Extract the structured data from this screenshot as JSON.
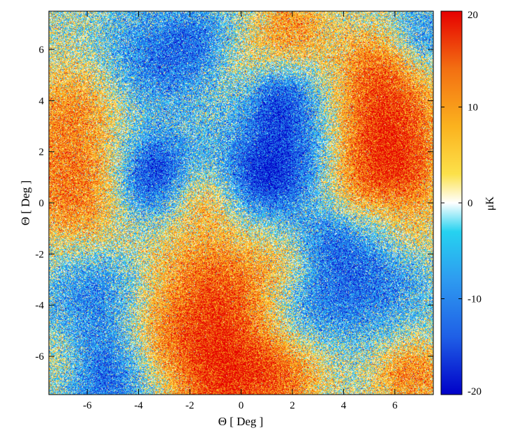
{
  "chart_data": {
    "type": "heatmap",
    "title": "",
    "xlabel": "Θ [ Deg ]",
    "ylabel": "Θ [ Deg ]",
    "xlim": [
      -7.5,
      7.5
    ],
    "ylim": [
      -7.5,
      7.5
    ],
    "x_ticks": [
      -6,
      -4,
      -2,
      0,
      2,
      4,
      6
    ],
    "y_ticks": [
      -6,
      -4,
      -2,
      0,
      2,
      4,
      6
    ],
    "x_tick_labels": [
      "-6",
      "-4",
      "-2",
      "0",
      "2",
      "4",
      "6"
    ],
    "y_tick_labels": [
      "-6",
      "-4",
      "-2",
      "0",
      "2",
      "4",
      "6"
    ],
    "grid": false,
    "colorbar": {
      "label": "μK",
      "range": [
        -20,
        20
      ],
      "ticks": [
        20,
        10,
        0,
        -10,
        -20
      ],
      "tick_labels": [
        "20",
        "10",
        "0",
        "-10",
        "-20"
      ],
      "placement": "right",
      "colormap_stops": [
        {
          "value": -20,
          "color": "#0000c8"
        },
        {
          "value": -14,
          "color": "#1f5fe6"
        },
        {
          "value": -8,
          "color": "#2e9bf0"
        },
        {
          "value": -3,
          "color": "#26d2f0"
        },
        {
          "value": 0,
          "color": "#ffffff"
        },
        {
          "value": 3,
          "color": "#fce14a"
        },
        {
          "value": 8,
          "color": "#fbb21e"
        },
        {
          "value": 14,
          "color": "#f36f12"
        },
        {
          "value": 20,
          "color": "#e60000"
        }
      ]
    },
    "noise_sigma": 6,
    "blobs": [
      {
        "x": -7.0,
        "y": 2.0,
        "r": 1.8,
        "amp": 9
      },
      {
        "x": -6.3,
        "y": 4.2,
        "r": 1.2,
        "amp": 6
      },
      {
        "x": -6.2,
        "y": -0.4,
        "r": 1.4,
        "amp": 8
      },
      {
        "x": -3.3,
        "y": 1.6,
        "r": 1.0,
        "amp": -11
      },
      {
        "x": -3.8,
        "y": 0.4,
        "r": 1.0,
        "amp": -9
      },
      {
        "x": -3.5,
        "y": 5.5,
        "r": 1.6,
        "amp": -10
      },
      {
        "x": -1.5,
        "y": 6.3,
        "r": 1.1,
        "amp": -8
      },
      {
        "x": 0.0,
        "y": 5.5,
        "r": 1.1,
        "amp": 5
      },
      {
        "x": 2.0,
        "y": 6.8,
        "r": 1.0,
        "amp": 10
      },
      {
        "x": 1.8,
        "y": 2.0,
        "r": 1.8,
        "amp": -14
      },
      {
        "x": 1.5,
        "y": 4.1,
        "r": 0.9,
        "amp": -9
      },
      {
        "x": 0.8,
        "y": 0.8,
        "r": 1.0,
        "amp": -8
      },
      {
        "x": -1.4,
        "y": 0.1,
        "r": 0.8,
        "amp": 6
      },
      {
        "x": -5.7,
        "y": -3.3,
        "r": 1.4,
        "amp": -10
      },
      {
        "x": -5.4,
        "y": -6.8,
        "r": 1.4,
        "amp": -13
      },
      {
        "x": -7.0,
        "y": -6.4,
        "r": 0.9,
        "amp": 6
      },
      {
        "x": -1.0,
        "y": -3.6,
        "r": 1.9,
        "amp": 15
      },
      {
        "x": -0.7,
        "y": -7.0,
        "r": 1.5,
        "amp": 15
      },
      {
        "x": 1.8,
        "y": -6.8,
        "r": 1.1,
        "amp": 9
      },
      {
        "x": -3.3,
        "y": -5.4,
        "r": 1.0,
        "amp": 5
      },
      {
        "x": 5.6,
        "y": 3.0,
        "r": 1.6,
        "amp": 18
      },
      {
        "x": 5.2,
        "y": 5.5,
        "r": 1.1,
        "amp": 8
      },
      {
        "x": 4.6,
        "y": 0.7,
        "r": 1.2,
        "amp": 10
      },
      {
        "x": 6.6,
        "y": 0.9,
        "r": 0.9,
        "amp": 7
      },
      {
        "x": 7.1,
        "y": 6.6,
        "r": 0.9,
        "amp": -9
      },
      {
        "x": 5.0,
        "y": -3.0,
        "r": 1.7,
        "amp": -11
      },
      {
        "x": 2.6,
        "y": -4.0,
        "r": 1.2,
        "amp": -7
      },
      {
        "x": 6.8,
        "y": -1.2,
        "r": 0.9,
        "amp": 6
      },
      {
        "x": 6.6,
        "y": -6.7,
        "r": 1.0,
        "amp": 12
      },
      {
        "x": 3.5,
        "y": -1.4,
        "r": 0.9,
        "amp": -6
      },
      {
        "x": 1.8,
        "y": -2.4,
        "r": 0.8,
        "amp": 4
      }
    ]
  }
}
